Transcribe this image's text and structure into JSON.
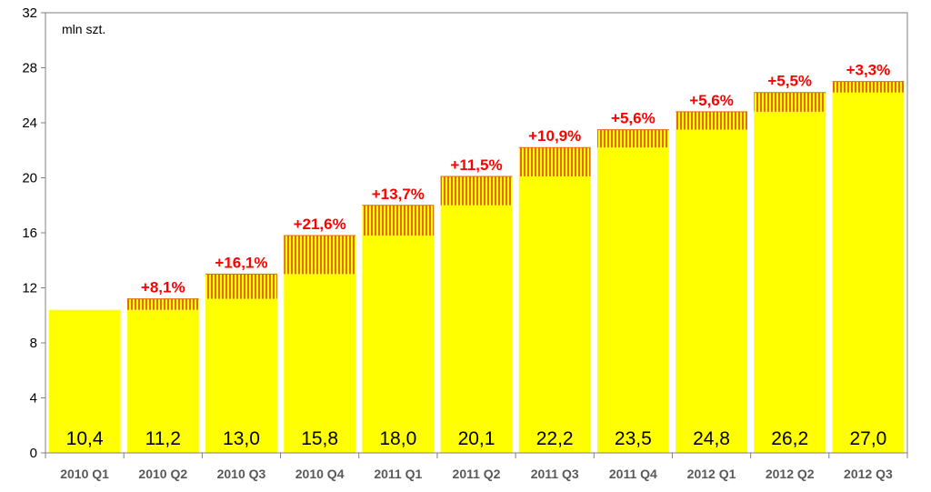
{
  "chart_data": {
    "type": "bar",
    "unit_label": "mln szt.",
    "categories": [
      "2010 Q1",
      "2010 Q2",
      "2010 Q3",
      "2010 Q4",
      "2011 Q1",
      "2011 Q2",
      "2011 Q3",
      "2011 Q4",
      "2012 Q1",
      "2012 Q2",
      "2012 Q3"
    ],
    "values": [
      10.4,
      11.2,
      13.0,
      15.8,
      18.0,
      20.1,
      22.2,
      23.5,
      24.8,
      26.2,
      27.0
    ],
    "value_labels": [
      "10,4",
      "11,2",
      "13,0",
      "15,8",
      "18,0",
      "20,1",
      "22,2",
      "23,5",
      "24,8",
      "26,2",
      "27,0"
    ],
    "growth_labels": [
      "",
      "+8,1%",
      "+16,1%",
      "+21,6%",
      "+13,7%",
      "+11,5%",
      "+10,9%",
      "+5,6%",
      "+5,6%",
      "+5,5%",
      "+3,3%"
    ],
    "y_ticks": [
      "0",
      "4",
      "8",
      "12",
      "16",
      "20",
      "24",
      "28",
      "32"
    ],
    "ylim": [
      0,
      32
    ],
    "grid": false,
    "legend": "none",
    "colors": {
      "bar": "#ffff00",
      "increment_stripe": "#e36c09",
      "growth_text": "#ff0000",
      "axis": "#808080"
    }
  }
}
